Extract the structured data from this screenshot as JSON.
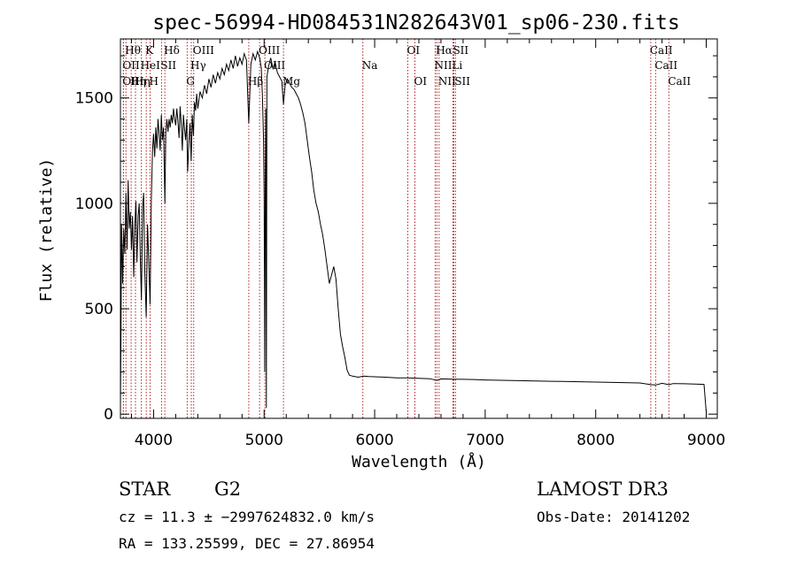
{
  "chart_data": {
    "type": "line",
    "title": "spec-56994-HD084531N282643V01_sp06-230.fits",
    "xlabel": "Wavelength (Å)",
    "ylabel": "Flux (relative)",
    "xlim": [
      3700,
      9100
    ],
    "ylim": [
      -20,
      1780
    ],
    "grid": false,
    "xticks": [
      4000,
      5000,
      6000,
      7000,
      8000,
      9000
    ],
    "yticks": [
      0,
      500,
      1000,
      1500
    ],
    "series": [
      {
        "points": [
          [
            3700,
            40
          ],
          [
            3705,
            380
          ],
          [
            3710,
            900
          ],
          [
            3715,
            780
          ],
          [
            3720,
            620
          ],
          [
            3730,
            880
          ],
          [
            3740,
            760
          ],
          [
            3750,
            1050
          ],
          [
            3760,
            780
          ],
          [
            3770,
            1110
          ],
          [
            3780,
            880
          ],
          [
            3790,
            960
          ],
          [
            3800,
            780
          ],
          [
            3810,
            940
          ],
          [
            3820,
            650
          ],
          [
            3830,
            890
          ],
          [
            3840,
            1010
          ],
          [
            3850,
            720
          ],
          [
            3860,
            940
          ],
          [
            3870,
            1000
          ],
          [
            3880,
            730
          ],
          [
            3890,
            540
          ],
          [
            3900,
            980
          ],
          [
            3910,
            1050
          ],
          [
            3920,
            680
          ],
          [
            3933,
            460
          ],
          [
            3945,
            900
          ],
          [
            3955,
            750
          ],
          [
            3968,
            520
          ],
          [
            3980,
            1020
          ],
          [
            3990,
            1250
          ],
          [
            4000,
            1330
          ],
          [
            4010,
            1220
          ],
          [
            4020,
            1360
          ],
          [
            4030,
            1260
          ],
          [
            4040,
            1400
          ],
          [
            4050,
            1330
          ],
          [
            4060,
            1250
          ],
          [
            4070,
            1420
          ],
          [
            4080,
            1300
          ],
          [
            4090,
            1360
          ],
          [
            4102,
            1000
          ],
          [
            4110,
            1330
          ],
          [
            4120,
            1400
          ],
          [
            4130,
            1340
          ],
          [
            4140,
            1400
          ],
          [
            4150,
            1360
          ],
          [
            4160,
            1420
          ],
          [
            4170,
            1380
          ],
          [
            4180,
            1450
          ],
          [
            4190,
            1400
          ],
          [
            4200,
            1370
          ],
          [
            4210,
            1450
          ],
          [
            4220,
            1390
          ],
          [
            4230,
            1310
          ],
          [
            4240,
            1460
          ],
          [
            4250,
            1380
          ],
          [
            4260,
            1250
          ],
          [
            4270,
            1420
          ],
          [
            4280,
            1350
          ],
          [
            4290,
            1300
          ],
          [
            4300,
            1400
          ],
          [
            4308,
            1150
          ],
          [
            4320,
            1300
          ],
          [
            4330,
            1380
          ],
          [
            4340,
            1200
          ],
          [
            4350,
            1420
          ],
          [
            4360,
            1320
          ],
          [
            4370,
            1480
          ],
          [
            4380,
            1440
          ],
          [
            4390,
            1520
          ],
          [
            4400,
            1450
          ],
          [
            4420,
            1530
          ],
          [
            4440,
            1500
          ],
          [
            4460,
            1560
          ],
          [
            4480,
            1520
          ],
          [
            4500,
            1590
          ],
          [
            4520,
            1550
          ],
          [
            4540,
            1610
          ],
          [
            4560,
            1570
          ],
          [
            4580,
            1620
          ],
          [
            4600,
            1590
          ],
          [
            4620,
            1640
          ],
          [
            4640,
            1610
          ],
          [
            4660,
            1660
          ],
          [
            4680,
            1630
          ],
          [
            4700,
            1680
          ],
          [
            4720,
            1640
          ],
          [
            4740,
            1700
          ],
          [
            4760,
            1650
          ],
          [
            4780,
            1690
          ],
          [
            4800,
            1660
          ],
          [
            4820,
            1710
          ],
          [
            4840,
            1680
          ],
          [
            4861,
            1380
          ],
          [
            4880,
            1660
          ],
          [
            4900,
            1710
          ],
          [
            4920,
            1680
          ],
          [
            4940,
            1720
          ],
          [
            4960,
            1690
          ],
          [
            4975,
            1640
          ],
          [
            4985,
            1500
          ],
          [
            4995,
            1300
          ],
          [
            5000,
            1020
          ],
          [
            5005,
            200
          ],
          [
            5010,
            1000
          ],
          [
            5015,
            1450
          ],
          [
            5020,
            30
          ],
          [
            5025,
            1600
          ],
          [
            5040,
            1650
          ],
          [
            5060,
            1690
          ],
          [
            5080,
            1640
          ],
          [
            5100,
            1670
          ],
          [
            5120,
            1620
          ],
          [
            5140,
            1600
          ],
          [
            5160,
            1580
          ],
          [
            5175,
            1470
          ],
          [
            5190,
            1560
          ],
          [
            5210,
            1590
          ],
          [
            5230,
            1570
          ],
          [
            5250,
            1550
          ],
          [
            5270,
            1540
          ],
          [
            5290,
            1520
          ],
          [
            5310,
            1500
          ],
          [
            5330,
            1470
          ],
          [
            5350,
            1430
          ],
          [
            5370,
            1380
          ],
          [
            5390,
            1300
          ],
          [
            5410,
            1220
          ],
          [
            5430,
            1150
          ],
          [
            5450,
            1060
          ],
          [
            5470,
            1000
          ],
          [
            5490,
            960
          ],
          [
            5510,
            900
          ],
          [
            5530,
            850
          ],
          [
            5550,
            780
          ],
          [
            5570,
            700
          ],
          [
            5590,
            620
          ],
          [
            5610,
            660
          ],
          [
            5630,
            700
          ],
          [
            5650,
            640
          ],
          [
            5670,
            500
          ],
          [
            5690,
            380
          ],
          [
            5710,
            320
          ],
          [
            5730,
            270
          ],
          [
            5750,
            210
          ],
          [
            5770,
            185
          ],
          [
            5800,
            180
          ],
          [
            5850,
            175
          ],
          [
            5900,
            180
          ],
          [
            5950,
            178
          ],
          [
            6000,
            177
          ],
          [
            6100,
            175
          ],
          [
            6200,
            172
          ],
          [
            6300,
            172
          ],
          [
            6400,
            170
          ],
          [
            6500,
            168
          ],
          [
            6563,
            160
          ],
          [
            6600,
            167
          ],
          [
            6700,
            166
          ],
          [
            6800,
            165
          ],
          [
            6900,
            164
          ],
          [
            7000,
            162
          ],
          [
            7200,
            160
          ],
          [
            7400,
            158
          ],
          [
            7600,
            156
          ],
          [
            7800,
            154
          ],
          [
            8000,
            152
          ],
          [
            8200,
            150
          ],
          [
            8400,
            148
          ],
          [
            8498,
            140
          ],
          [
            8542,
            138
          ],
          [
            8600,
            146
          ],
          [
            8662,
            140
          ],
          [
            8700,
            145
          ],
          [
            8800,
            144
          ],
          [
            8900,
            143
          ],
          [
            8980,
            141
          ],
          [
            9000,
            10
          ]
        ]
      }
    ],
    "lines": [
      {
        "wave": 3750,
        "label": "Hθ",
        "row": 1
      },
      {
        "wave": 3727,
        "label": "OII",
        "row": 2
      },
      {
        "wave": 3727,
        "label": "OII",
        "row": 3
      },
      {
        "wave": 3797,
        "label": "Hη",
        "row": 3
      },
      {
        "wave": 3836,
        "label": "Hη",
        "row": 3
      },
      {
        "wave": 3889,
        "label": "HeI",
        "row": 2
      },
      {
        "wave": 3934,
        "label": "K",
        "row": 1
      },
      {
        "wave": 3968,
        "label": "H",
        "row": 3
      },
      {
        "wave": 4072,
        "label": "SII",
        "row": 2
      },
      {
        "wave": 4102,
        "label": "Hδ",
        "row": 1
      },
      {
        "wave": 4304,
        "label": "G",
        "row": 3
      },
      {
        "wave": 4341,
        "label": "Hγ",
        "row": 2
      },
      {
        "wave": 4363,
        "label": "OIII",
        "row": 1
      },
      {
        "wave": 4861,
        "label": "Hβ",
        "row": 3
      },
      {
        "wave": 4959,
        "label": "OIII",
        "row": 1
      },
      {
        "wave": 5007,
        "label": "OIII",
        "row": 2
      },
      {
        "wave": 5175,
        "label": "Mg",
        "row": 3
      },
      {
        "wave": 5893,
        "label": "Na",
        "row": 2
      },
      {
        "wave": 6300,
        "label": "OI",
        "row": 1
      },
      {
        "wave": 6364,
        "label": "OI",
        "row": 3
      },
      {
        "wave": 6548,
        "label": "NII",
        "row": 2
      },
      {
        "wave": 6563,
        "label": "Hα",
        "row": 1
      },
      {
        "wave": 6583,
        "label": "NII",
        "row": 3
      },
      {
        "wave": 6708,
        "label": "Li",
        "row": 2
      },
      {
        "wave": 6716,
        "label": "SII",
        "row": 1
      },
      {
        "wave": 6731,
        "label": "SII",
        "row": 3
      },
      {
        "wave": 8498,
        "label": "CaII",
        "row": 1
      },
      {
        "wave": 8542,
        "label": "CaII",
        "row": 2
      },
      {
        "wave": 8662,
        "label": "CaII",
        "row": 3
      }
    ]
  },
  "info": {
    "object_class": "STAR",
    "subclass": "G2",
    "survey": "LAMOST DR3",
    "cz": "cz = 11.3 ± −2997624832.0 km/s",
    "obs_date": "Obs-Date: 20141202",
    "coords": "RA = 133.25599, DEC =  27.86954"
  },
  "colors": {
    "spectrum": "#000000",
    "line_marker": "#b22222",
    "axes": "#000000"
  }
}
